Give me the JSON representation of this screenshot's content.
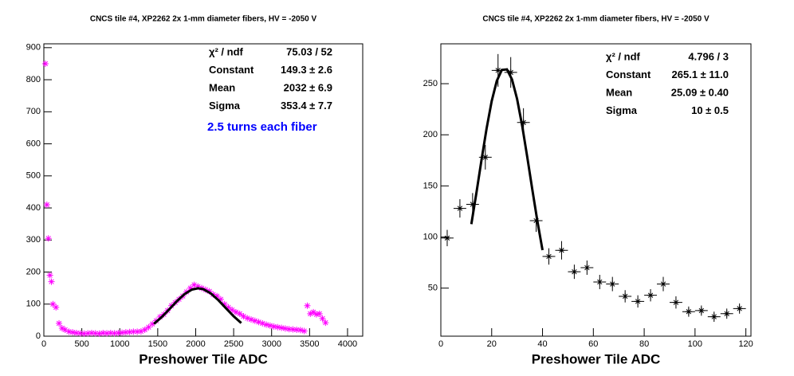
{
  "chart_data": [
    {
      "type": "scatter",
      "title": "CNCS tile #4, XP2262 2x 1-mm diameter fibers, HV = -2050 V",
      "x_label": "Preshower Tile ADC",
      "xlim": [
        0,
        4200
      ],
      "xticks": [
        0,
        500,
        1000,
        1500,
        2000,
        2500,
        3000,
        3500,
        4000
      ],
      "ylim": [
        0,
        912
      ],
      "yticks": [
        0,
        100,
        200,
        300,
        400,
        500,
        600,
        700,
        800,
        900
      ],
      "series": [
        {
          "type": "scatter",
          "color": "#ff00ff",
          "x": [
            20,
            40,
            60,
            80,
            100,
            120,
            160,
            200,
            240,
            280,
            330,
            380,
            430,
            480,
            530,
            580,
            630,
            680,
            730,
            780,
            830,
            880,
            930,
            980,
            1030,
            1080,
            1130,
            1180,
            1230,
            1280,
            1330,
            1380,
            1430,
            1480,
            1530,
            1580,
            1630,
            1680,
            1730,
            1780,
            1830,
            1880,
            1930,
            1980,
            2030,
            2080,
            2130,
            2180,
            2230,
            2280,
            2330,
            2380,
            2430,
            2480,
            2530,
            2580,
            2630,
            2680,
            2730,
            2780,
            2830,
            2880,
            2930,
            2980,
            3030,
            3080,
            3130,
            3180,
            3230,
            3280,
            3330,
            3380,
            3430,
            3470,
            3510,
            3550,
            3590,
            3630,
            3670,
            3710
          ],
          "values": [
            850,
            410,
            305,
            190,
            170,
            100,
            90,
            40,
            25,
            20,
            14,
            12,
            10,
            9,
            8,
            9,
            10,
            9,
            8,
            10,
            9,
            10,
            9,
            10,
            11,
            12,
            13,
            14,
            14,
            15,
            20,
            28,
            38,
            48,
            60,
            68,
            80,
            95,
            105,
            115,
            125,
            138,
            150,
            160,
            155,
            150,
            145,
            140,
            130,
            125,
            115,
            100,
            90,
            82,
            75,
            70,
            62,
            56,
            52,
            48,
            44,
            40,
            36,
            33,
            30,
            28,
            26,
            24,
            22,
            21,
            20,
            19,
            16,
            95,
            70,
            75,
            68,
            70,
            55,
            42
          ]
        },
        {
          "type": "line",
          "color": "#000000",
          "x": [
            1450,
            1550,
            1650,
            1750,
            1850,
            1950,
            2032,
            2100,
            2200,
            2300,
            2400,
            2500,
            2600
          ],
          "values": [
            38.5,
            58.9,
            83.3,
            108.6,
            130.7,
            145.3,
            149.3,
            146.6,
            133.3,
            112.0,
            86.8,
            62.1,
            41.0
          ]
        }
      ],
      "stats": [
        {
          "label": "χ² / ndf",
          "value": "75.03 / 52"
        },
        {
          "label": "Constant",
          "value": "149.3 ± 2.6"
        },
        {
          "label": "Mean",
          "value": "2032 ± 6.9"
        },
        {
          "label": "Sigma",
          "value": "353.4 ± 7.7"
        }
      ],
      "annotation": {
        "text": "2.5 turns each fiber",
        "color": "#0000ff"
      }
    },
    {
      "type": "scatter",
      "title": "CNCS tile #4, XP2262 2x 1-mm diameter fibers, HV = -2050 V",
      "x_label": "Preshower Tile ADC",
      "xlim": [
        0,
        122
      ],
      "xticks": [
        0,
        20,
        40,
        60,
        80,
        100,
        120
      ],
      "ylim": [
        3,
        289
      ],
      "yticks": [
        50,
        100,
        150,
        200,
        250
      ],
      "series": [
        {
          "type": "scatter",
          "color": "#000000",
          "x": [
            2.5,
            7.5,
            12.5,
            17.5,
            22.5,
            27.5,
            32.5,
            37.5,
            42.5,
            47.5,
            52.5,
            57.5,
            62.5,
            67.5,
            72.5,
            77.5,
            82.5,
            87.5,
            92.5,
            97.5,
            102.5,
            107.5,
            112.5,
            117.5
          ],
          "xerr": [
            2.5,
            2.5,
            2.5,
            2.5,
            2.5,
            2.5,
            2.5,
            2.5,
            2.5,
            2.5,
            2.5,
            2.5,
            2.5,
            2.5,
            2.5,
            2.5,
            2.5,
            2.5,
            2.5,
            2.5,
            2.5,
            2.5,
            2.5,
            2.5
          ],
          "values": [
            99,
            128,
            132,
            178,
            263,
            261,
            212,
            116,
            81,
            87,
            66,
            70,
            56,
            54,
            42,
            37,
            43,
            54,
            36,
            27,
            28,
            22,
            25,
            30
          ],
          "yerr": [
            8,
            9,
            11,
            12,
            16,
            15,
            14,
            11,
            8,
            9,
            7,
            7,
            7,
            7,
            6,
            6,
            6,
            7,
            6,
            5,
            5,
            5,
            5,
            5
          ]
        },
        {
          "type": "line",
          "color": "#000000",
          "x": [
            12,
            14,
            16,
            18,
            20,
            22,
            24,
            26,
            28,
            30,
            32,
            34,
            36,
            38,
            40
          ],
          "values": [
            112.6,
            143.3,
            175.4,
            206.2,
            232.9,
            252.7,
            263.5,
            264.0,
            254.1,
            235.0,
            208.8,
            178.2,
            146.2,
            115.2,
            87.2
          ]
        }
      ],
      "stats": [
        {
          "label": "χ² / ndf",
          "value": "4.796 / 3"
        },
        {
          "label": "Constant",
          "value": "265.1 ± 11.0"
        },
        {
          "label": "Mean",
          "value": "25.09 ± 0.40"
        },
        {
          "label": "Sigma",
          "value": "10 ± 0.5"
        }
      ]
    }
  ]
}
